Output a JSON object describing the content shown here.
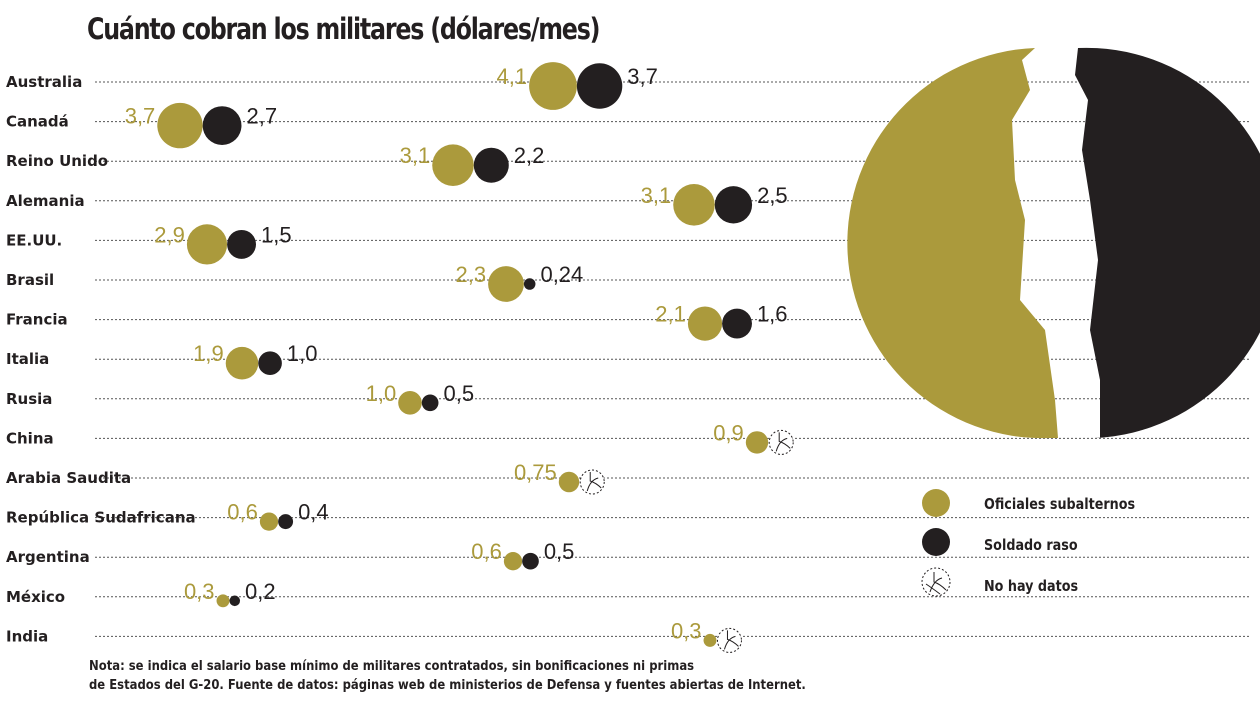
{
  "chart_data": {
    "type": "bubble",
    "title": "Cuánto cobran los militares (dólares/mes)",
    "categories": [
      "Australia",
      "Canadá",
      "Reino Unido",
      "Alemania",
      "EE.UU.",
      "Brasil",
      "Francia",
      "Italia",
      "Rusia",
      "China",
      "Arabia Saudita",
      "República Sudafricana",
      "Argentina",
      "México",
      "India"
    ],
    "series": [
      {
        "name": "Oficiales subalternos",
        "color": "#ab9a3c",
        "values": [
          4.1,
          3.7,
          3.1,
          3.1,
          2.9,
          2.3,
          2.1,
          1.9,
          1.0,
          0.9,
          0.75,
          0.6,
          0.6,
          0.3,
          0.3
        ],
        "labels": [
          "4,1",
          "3,7",
          "3,1",
          "3,1",
          "2,9",
          "2,3",
          "2,1",
          "1,9",
          "1,0",
          "0,9",
          "0,75",
          "0,6",
          "0,6",
          "0,3",
          "0,3"
        ]
      },
      {
        "name": "Soldado raso",
        "color": "#231f20",
        "values": [
          3.7,
          2.7,
          2.2,
          2.5,
          1.5,
          0.24,
          1.6,
          1.0,
          0.5,
          null,
          null,
          0.4,
          0.5,
          0.2,
          null
        ],
        "labels": [
          "3,7",
          "2,7",
          "2,2",
          "2,5",
          "1,5",
          "0,24",
          "1,6",
          "1,0",
          "0,5",
          "",
          "",
          "0,4",
          "0,5",
          "0,2",
          ""
        ]
      }
    ],
    "no_data_label": "No hay datos",
    "grid": "dotted row lines"
  },
  "legend": {
    "items": [
      {
        "label": "Oficiales subalternos",
        "color": "#ab9a3c"
      },
      {
        "label": "Soldado raso",
        "color": "#231f20"
      },
      {
        "label": "No hay datos",
        "icon": "no-data-icon"
      }
    ]
  },
  "note": {
    "line1": "Nota: se indica el salario base mínimo de militares contratados, sin bonificaciones ni primas",
    "line2": "de Estados del G-20. Fuente de datos: páginas web de ministerios de Defensa y fuentes abiertas de Internet."
  },
  "illustration": "soldier-silhouette-icon"
}
